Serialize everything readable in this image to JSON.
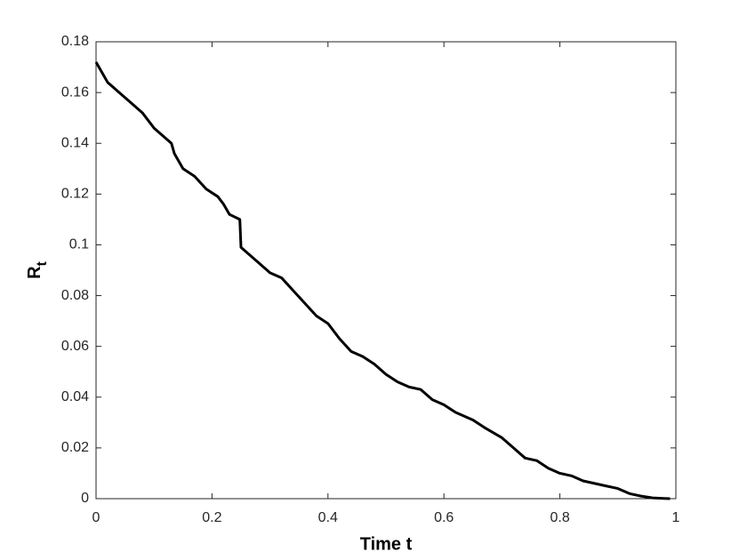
{
  "chart_data": {
    "type": "line",
    "xlabel": "Time t",
    "ylabel": "Rt",
    "x": [
      0,
      0.01,
      0.02,
      0.04,
      0.06,
      0.08,
      0.1,
      0.12,
      0.13,
      0.135,
      0.15,
      0.17,
      0.19,
      0.21,
      0.22,
      0.23,
      0.248,
      0.25,
      0.26,
      0.28,
      0.3,
      0.32,
      0.34,
      0.36,
      0.38,
      0.4,
      0.42,
      0.44,
      0.46,
      0.48,
      0.5,
      0.52,
      0.54,
      0.56,
      0.58,
      0.6,
      0.62,
      0.65,
      0.67,
      0.7,
      0.72,
      0.74,
      0.76,
      0.78,
      0.8,
      0.82,
      0.84,
      0.86,
      0.88,
      0.9,
      0.92,
      0.94,
      0.96,
      0.98,
      0.99
    ],
    "series": [
      {
        "color": "#000000",
        "values": [
          0.172,
          0.168,
          0.164,
          0.16,
          0.156,
          0.152,
          0.146,
          0.142,
          0.14,
          0.136,
          0.13,
          0.127,
          0.122,
          0.119,
          0.116,
          0.112,
          0.11,
          0.099,
          0.097,
          0.093,
          0.089,
          0.087,
          0.082,
          0.077,
          0.072,
          0.069,
          0.063,
          0.058,
          0.056,
          0.053,
          0.049,
          0.046,
          0.044,
          0.043,
          0.039,
          0.037,
          0.034,
          0.031,
          0.028,
          0.024,
          0.02,
          0.016,
          0.015,
          0.012,
          0.01,
          0.009,
          0.007,
          0.006,
          0.005,
          0.004,
          0.002,
          0.001,
          0.0003,
          0.0001,
          0
        ]
      }
    ],
    "xlim": [
      0,
      1
    ],
    "ylim": [
      0,
      0.18
    ],
    "xticks": [
      0,
      0.2,
      0.4,
      0.6,
      0.8,
      1
    ],
    "yticks": [
      0,
      0.02,
      0.04,
      0.06,
      0.08,
      0.1,
      0.12,
      0.14,
      0.16,
      0.18
    ],
    "grid": false
  }
}
